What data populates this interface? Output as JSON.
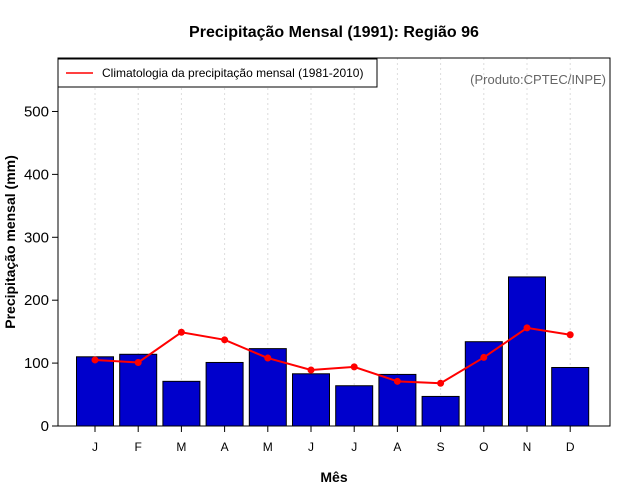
{
  "chart_data": {
    "type": "bar",
    "title": "Precipitação Mensal (1991): Região 96",
    "xlabel": "Mês",
    "ylabel": "Precipitação mensal (mm)",
    "ylim": [
      0,
      585
    ],
    "yticks": [
      0,
      100,
      200,
      300,
      400,
      500
    ],
    "categories": [
      "J",
      "F",
      "M",
      "A",
      "M",
      "J",
      "J",
      "A",
      "S",
      "O",
      "N",
      "D"
    ],
    "series": [
      {
        "name": "Precipitação mensal (1991)",
        "type": "bar",
        "color": "#0000cc",
        "values": [
          110,
          114,
          71,
          101,
          123,
          83,
          64,
          82,
          47,
          134,
          237,
          93
        ]
      },
      {
        "name": "Climatologia da precipitação mensal (1981-2010)",
        "type": "line",
        "color": "#ff0000",
        "values": [
          105,
          101,
          149,
          137,
          108,
          89,
          94,
          71,
          68,
          109,
          156,
          145
        ]
      }
    ],
    "legend": {
      "label": "Climatologia da precipitação mensal (1981-2010)",
      "position": "top-left"
    },
    "annotation": "(Produto:CPTEC/INPE)",
    "grid": "vertical-dotted"
  }
}
